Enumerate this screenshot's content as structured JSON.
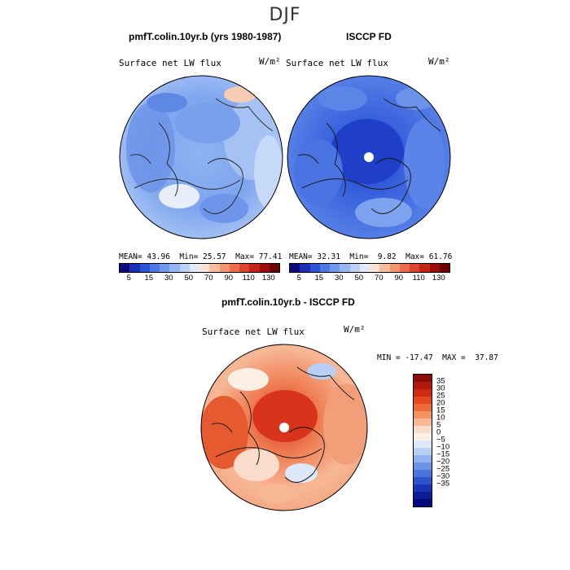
{
  "figure": {
    "title": "DJF"
  },
  "panels": [
    {
      "title": "pmfT.colin.10yr.b (yrs 1980-1987)",
      "variable": "Surface net LW flux",
      "units": "W/m²",
      "stats": {
        "mean_label": "MEAN=",
        "mean": "43.96",
        "min_label": "Min=",
        "min": "25.57",
        "max_label": "Max=",
        "max": "77.41"
      }
    },
    {
      "title": "ISCCP FD",
      "variable": "Surface net LW flux",
      "units": "W/m²",
      "stats": {
        "mean_label": "MEAN=",
        "mean": "32.31",
        "min_label": "Min=",
        "min": "9.82",
        "max_label": "Max=",
        "max": "61.76"
      }
    },
    {
      "title": "pmfT.colin.10yr.b - ISCCP FD",
      "variable": "Surface net LW flux",
      "units": "W/m²",
      "stats": {
        "min_label": "MIN =",
        "min": "-17.47",
        "max_label": "MAX =",
        "max": "37.87"
      }
    }
  ],
  "colorbar_top": {
    "labels": [
      "5",
      "15",
      "30",
      "50",
      "70",
      "90",
      "110",
      "130"
    ],
    "colors": [
      "#0a0a7a",
      "#1c2fb4",
      "#2b55d8",
      "#4a78e6",
      "#6f97ee",
      "#95b6f4",
      "#bcd0f7",
      "#e2ebfb",
      "#fbe3d5",
      "#f7bb9e",
      "#f39470",
      "#ea6c49",
      "#da452c",
      "#c22417",
      "#9c0c0b",
      "#6e0202"
    ]
  },
  "colorbar_diff": {
    "labels": [
      "35",
      "30",
      "25",
      "20",
      "15",
      "10",
      "5",
      "0",
      "−5",
      "−10",
      "−15",
      "−20",
      "−25",
      "−30",
      "−35"
    ],
    "colors": [
      "#8b0b0b",
      "#b3180f",
      "#d02a16",
      "#e4461f",
      "#ee6a38",
      "#f39263",
      "#f7b896",
      "#fadccb",
      "#fcefe6",
      "#dde8fb",
      "#b9cff6",
      "#91b1ef",
      "#6d93e7",
      "#4c74dc",
      "#2d54cc",
      "#1935b3",
      "#0c1d96",
      "#04087a"
    ]
  }
}
